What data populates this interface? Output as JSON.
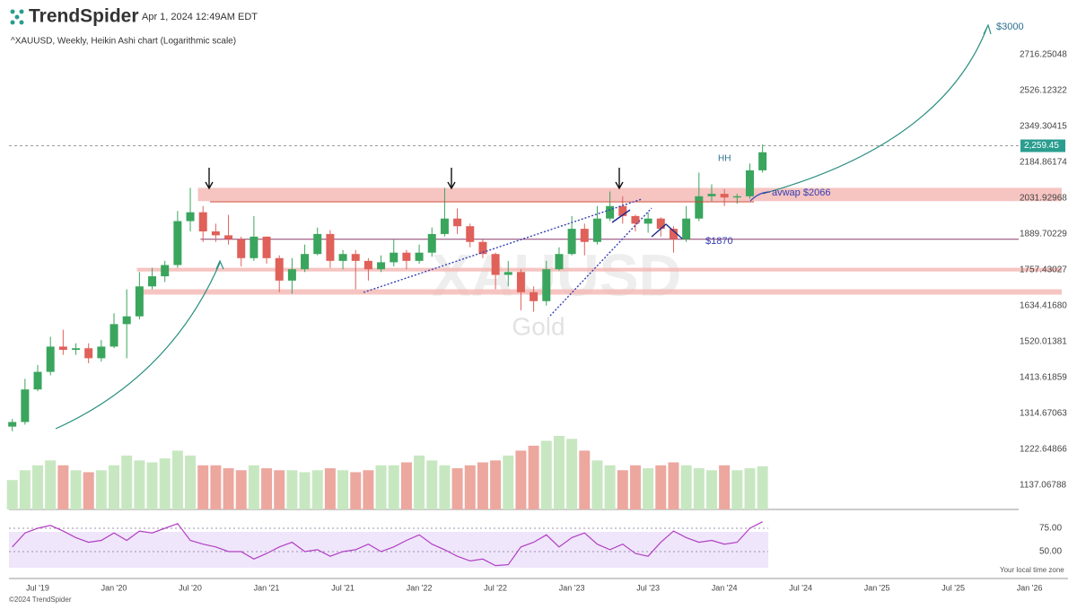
{
  "header": {
    "brand": "TrendSpider",
    "timestamp": "Apr 1, 2024 12:49AM EDT",
    "description": "^XAUUSD, Weekly, Heikin Ashi chart (Logarithmic scale)",
    "watermark": "XAUUSD",
    "watermark_sub": "Gold",
    "copyright": "©2024 TrendSpider",
    "timezone_note": "Your local time zone"
  },
  "chart_data": {
    "type": "candlestick",
    "log_scale": true,
    "up_color": "#3aa55d",
    "down_color": "#e0605a",
    "volume_up_color": "#c7e7c1",
    "volume_down_color": "#eca79f",
    "rsi_color": "#b23fc4",
    "xlim": [
      -2.26,
      77.14
    ],
    "xticks": [
      {
        "value": 0,
        "label": "Jul '19"
      },
      {
        "value": 6,
        "label": "Jan '20"
      },
      {
        "value": 12,
        "label": "Jul '20"
      },
      {
        "value": 18,
        "label": "Jan '21"
      },
      {
        "value": 24,
        "label": "Jul '21"
      },
      {
        "value": 30,
        "label": "Jan '22"
      },
      {
        "value": 36,
        "label": "Jul '22"
      },
      {
        "value": 42,
        "label": "Jan '23"
      },
      {
        "value": 48,
        "label": "Jul '23"
      },
      {
        "value": 54,
        "label": "Jan '24"
      },
      {
        "value": 60,
        "label": "Jul '24"
      },
      {
        "value": 66,
        "label": "Jan '25"
      },
      {
        "value": 72,
        "label": "Jul '25"
      },
      {
        "value": 78,
        "label": "Jan '26"
      }
    ],
    "ylim": [
      1082.5,
      2980
    ],
    "yticks": [
      2716.25048,
      2526.12322,
      2349.30415,
      2184.86174,
      2031.92968,
      1889.70229,
      1757.43027,
      {
        "value": 1634.4168,
        "label": "1634.41680"
      },
      1520.01381,
      1413.61859,
      1314.67063,
      1222.64866,
      1137.06788
    ],
    "last_price": {
      "value": 2259.45,
      "label": "2,259.45"
    },
    "x": [
      -2,
      -1,
      0,
      1,
      2,
      3,
      4,
      5,
      6,
      7,
      8,
      9,
      10,
      11,
      12,
      13,
      14,
      15,
      16,
      17,
      18,
      19,
      20,
      21,
      22,
      23,
      24,
      25,
      26,
      27,
      28,
      29,
      30,
      31,
      32,
      33,
      34,
      35,
      36,
      37,
      38,
      39,
      40,
      41,
      42,
      43,
      44,
      45,
      46,
      47,
      48,
      49,
      50,
      51,
      52,
      53,
      54,
      55,
      56,
      57
    ],
    "open": [
      1280,
      1292,
      1380,
      1430,
      1505,
      1495,
      1500,
      1470,
      1505,
      1575,
      1600,
      1700,
      1735,
      1775,
      1940,
      1975,
      1900,
      1885,
      1870,
      1800,
      1880,
      1800,
      1720,
      1760,
      1815,
      1890,
      1790,
      1815,
      1790,
      1760,
      1785,
      1820,
      1790,
      1820,
      1890,
      1950,
      1920,
      1860,
      1815,
      1740,
      1750,
      1680,
      1650,
      1760,
      1815,
      1910,
      1860,
      1950,
      2000,
      1960,
      1930,
      1950,
      1910,
      1870,
      1950,
      2040,
      2050,
      2035,
      2040,
      2150
    ],
    "high": [
      1300,
      1410,
      1450,
      1535,
      1557,
      1515,
      1515,
      1525,
      1610,
      1690,
      1750,
      1765,
      1790,
      1980,
      2075,
      2000,
      1930,
      1965,
      1880,
      1960,
      1880,
      1810,
      1800,
      1850,
      1915,
      1905,
      1830,
      1830,
      1800,
      1810,
      1870,
      1830,
      1850,
      1915,
      2075,
      1990,
      1930,
      1870,
      1820,
      1790,
      1760,
      1700,
      1790,
      1840,
      1960,
      1930,
      2000,
      2060,
      2040,
      1965,
      1975,
      1955,
      1920,
      2000,
      2140,
      2090,
      2070,
      2050,
      2180,
      2265
    ],
    "low": [
      1268,
      1285,
      1375,
      1420,
      1480,
      1480,
      1455,
      1460,
      1500,
      1470,
      1590,
      1690,
      1715,
      1765,
      1900,
      1860,
      1860,
      1850,
      1770,
      1790,
      1780,
      1680,
      1675,
      1750,
      1810,
      1765,
      1760,
      1690,
      1720,
      1750,
      1770,
      1760,
      1780,
      1805,
      1880,
      1890,
      1840,
      1800,
      1690,
      1700,
      1620,
      1615,
      1635,
      1755,
      1810,
      1810,
      1850,
      1940,
      1930,
      1900,
      1895,
      1880,
      1820,
      1860,
      1940,
      2020,
      2000,
      2010,
      2030,
      2140
    ],
    "close": [
      1292,
      1380,
      1430,
      1505,
      1495,
      1500,
      1470,
      1505,
      1575,
      1600,
      1700,
      1735,
      1775,
      1940,
      1975,
      1900,
      1885,
      1870,
      1800,
      1880,
      1800,
      1720,
      1760,
      1815,
      1890,
      1790,
      1815,
      1790,
      1760,
      1785,
      1820,
      1790,
      1820,
      1890,
      1950,
      1920,
      1860,
      1815,
      1740,
      1750,
      1680,
      1650,
      1760,
      1815,
      1910,
      1860,
      1950,
      2000,
      1960,
      1930,
      1950,
      1910,
      1870,
      1950,
      2040,
      2050,
      2035,
      2040,
      2150,
      2230
    ],
    "volume": [
      30,
      40,
      45,
      50,
      45,
      40,
      38,
      40,
      45,
      55,
      50,
      48,
      52,
      60,
      55,
      45,
      45,
      42,
      40,
      45,
      42,
      40,
      40,
      38,
      40,
      42,
      40,
      38,
      40,
      45,
      45,
      48,
      55,
      50,
      45,
      42,
      45,
      48,
      50,
      55,
      60,
      65,
      70,
      75,
      72,
      60,
      50,
      45,
      40,
      45,
      42,
      45,
      48,
      45,
      42,
      40,
      45,
      40,
      42,
      44
    ],
    "rsi_ylim": [
      32.7,
      91.3
    ],
    "rsi_yticks": [
      {
        "value": 75,
        "label": "75.00"
      },
      {
        "value": 50,
        "label": "50.00"
      }
    ],
    "rsi": [
      55,
      70,
      75,
      78,
      72,
      65,
      60,
      62,
      70,
      62,
      72,
      70,
      75,
      80,
      62,
      58,
      55,
      50,
      50,
      42,
      48,
      55,
      60,
      50,
      52,
      45,
      50,
      52,
      58,
      50,
      55,
      62,
      68,
      58,
      52,
      45,
      40,
      42,
      35,
      36,
      55,
      60,
      68,
      55,
      65,
      70,
      58,
      52,
      58,
      48,
      45,
      60,
      72,
      65,
      60,
      62,
      58,
      60,
      75,
      82
    ],
    "zones": [
      {
        "from": 12.6,
        "low": 2020,
        "high": 2075
      },
      {
        "from": 7.8,
        "low": 1752,
        "high": 1765
      },
      {
        "from": 8,
        "low": 1672,
        "high": 1690
      }
    ],
    "level": {
      "from": 12.8,
      "value": 1870
    },
    "annotations": {
      "target": "$3000",
      "high": "HH",
      "avwap": "avwap $2066",
      "support": "$1870"
    }
  }
}
